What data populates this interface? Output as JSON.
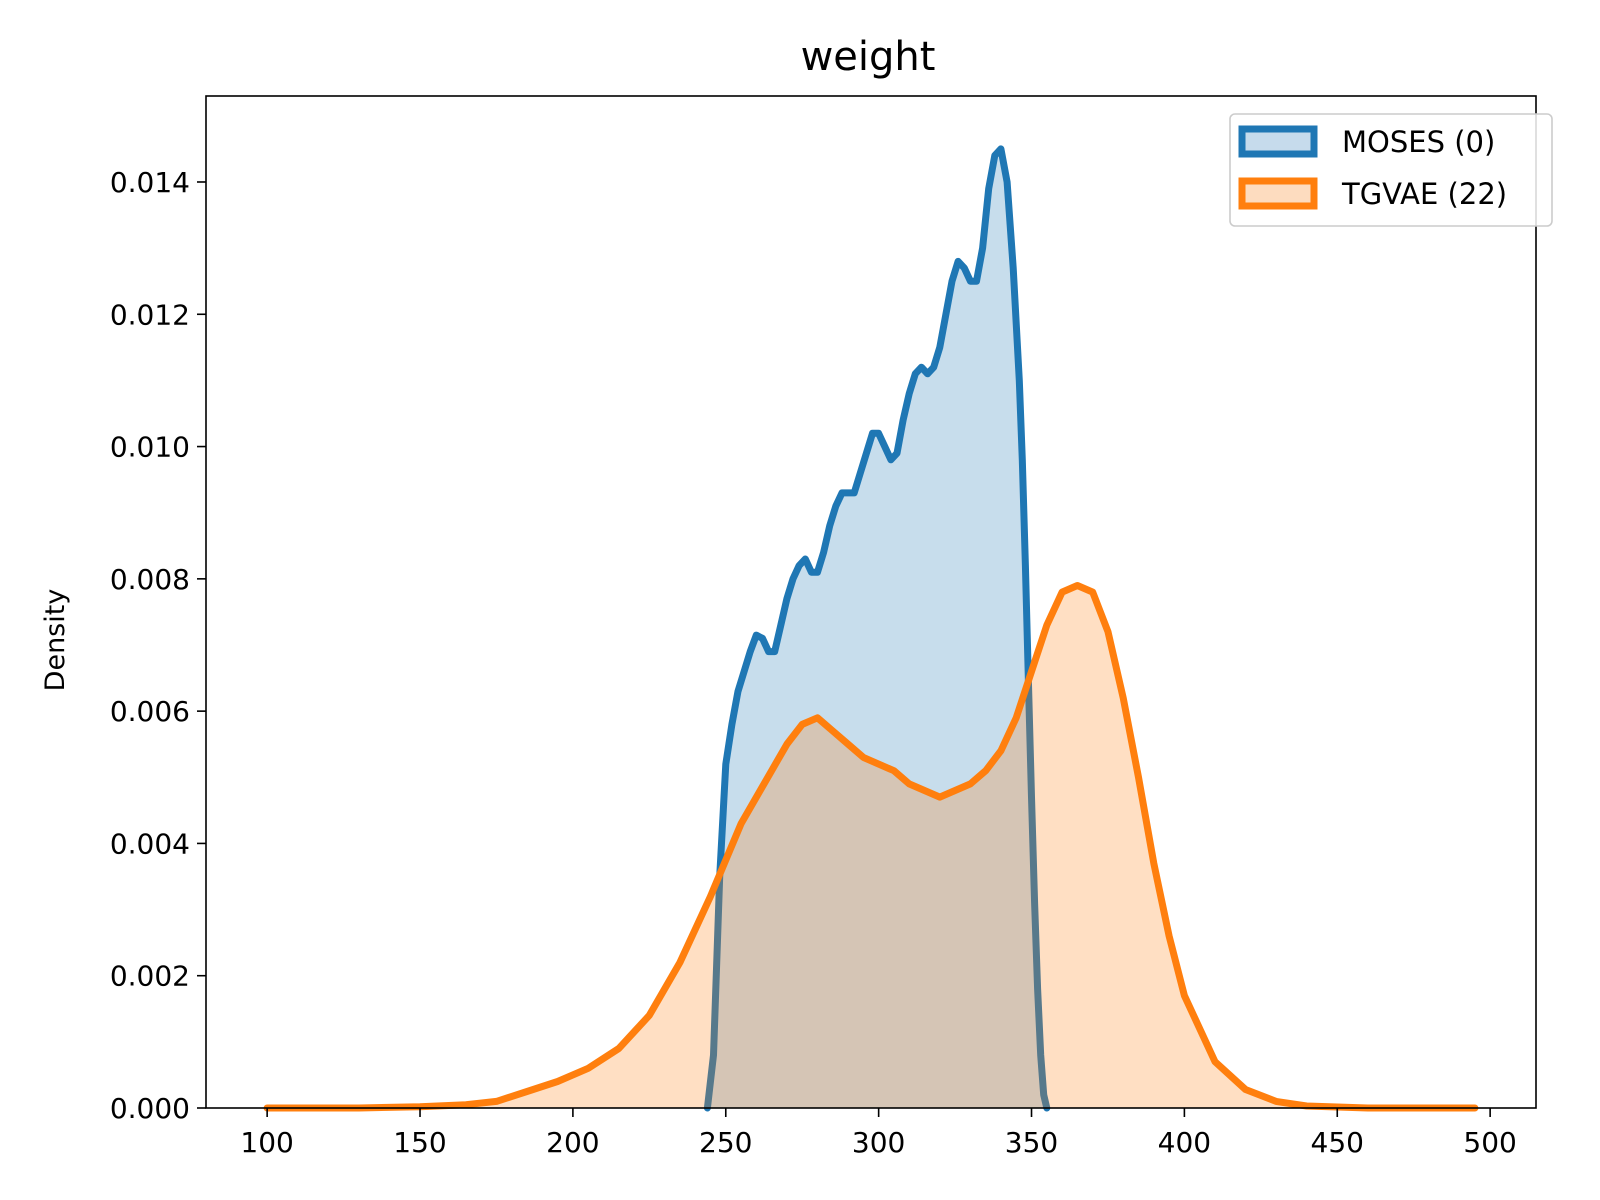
{
  "chart_data": {
    "type": "area",
    "title": "weight",
    "xlabel": "",
    "ylabel": "Density",
    "xlim": [
      80,
      515
    ],
    "ylim": [
      0,
      0.0153
    ],
    "xticks": [
      100,
      150,
      200,
      250,
      300,
      350,
      400,
      450,
      500
    ],
    "xtick_labels": [
      "100",
      "150",
      "200",
      "250",
      "300",
      "350",
      "400",
      "450",
      "500"
    ],
    "yticks": [
      0,
      0.002,
      0.004,
      0.006,
      0.008,
      0.01,
      0.012,
      0.014
    ],
    "ytick_labels": [
      "0.000",
      "0.002",
      "0.004",
      "0.006",
      "0.008",
      "0.010",
      "0.012",
      "0.014"
    ],
    "grid": false,
    "legend_position": "top-right",
    "series": [
      {
        "name": "MOSES (0)",
        "color": "#1f77b4",
        "fill_color": "#c6dbec",
        "x": [
          244,
          246,
          248,
          250,
          252,
          254,
          256,
          258,
          260,
          262,
          264,
          266,
          268,
          270,
          272,
          274,
          276,
          278,
          280,
          282,
          284,
          286,
          288,
          290,
          292,
          294,
          296,
          298,
          300,
          302,
          304,
          306,
          308,
          310,
          312,
          314,
          316,
          318,
          320,
          322,
          324,
          326,
          328,
          330,
          332,
          334,
          336,
          338,
          340,
          342,
          344,
          346,
          347,
          348,
          349,
          350,
          351,
          352,
          353,
          354,
          355
        ],
        "y": [
          0.0,
          0.0008,
          0.0035,
          0.0052,
          0.0058,
          0.0063,
          0.0066,
          0.0069,
          0.00715,
          0.0071,
          0.0069,
          0.0069,
          0.0073,
          0.0077,
          0.008,
          0.0082,
          0.0083,
          0.0081,
          0.0081,
          0.0084,
          0.0088,
          0.0091,
          0.0093,
          0.0093,
          0.0093,
          0.0096,
          0.0099,
          0.0102,
          0.0102,
          0.01,
          0.0098,
          0.0099,
          0.0104,
          0.0108,
          0.0111,
          0.0112,
          0.0111,
          0.0112,
          0.0115,
          0.012,
          0.0125,
          0.0128,
          0.0127,
          0.0125,
          0.0125,
          0.013,
          0.0139,
          0.0144,
          0.0145,
          0.014,
          0.0127,
          0.011,
          0.0098,
          0.0082,
          0.0064,
          0.0047,
          0.0031,
          0.0018,
          0.0008,
          0.0002,
          0.0
        ]
      },
      {
        "name": "TGVAE (22)",
        "color": "#ff7f0e",
        "fill_color": "#fddcbf",
        "x": [
          100,
          130,
          150,
          165,
          175,
          185,
          195,
          205,
          215,
          225,
          235,
          245,
          255,
          265,
          270,
          275,
          280,
          285,
          290,
          295,
          300,
          305,
          310,
          315,
          320,
          325,
          330,
          335,
          340,
          345,
          350,
          355,
          360,
          365,
          370,
          375,
          380,
          385,
          390,
          395,
          400,
          410,
          420,
          430,
          440,
          460,
          480,
          495
        ],
        "y": [
          0.0,
          0.0,
          2e-05,
          5e-05,
          0.0001,
          0.00025,
          0.0004,
          0.0006,
          0.0009,
          0.0014,
          0.0022,
          0.0032,
          0.0043,
          0.0051,
          0.0055,
          0.0058,
          0.0059,
          0.0057,
          0.0055,
          0.0053,
          0.0052,
          0.0051,
          0.0049,
          0.0048,
          0.0047,
          0.0048,
          0.0049,
          0.0051,
          0.0054,
          0.0059,
          0.0066,
          0.0073,
          0.0078,
          0.0079,
          0.0078,
          0.0072,
          0.0062,
          0.005,
          0.0037,
          0.0026,
          0.0017,
          0.0007,
          0.00028,
          0.0001,
          3e-05,
          0.0,
          0.0,
          0.0
        ]
      }
    ]
  }
}
